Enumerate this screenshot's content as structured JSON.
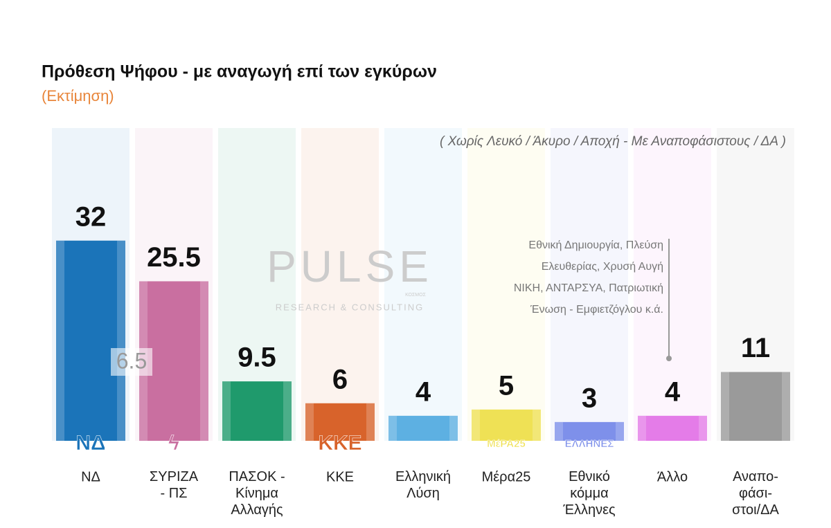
{
  "chart_data": {
    "type": "bar",
    "title": "Πρόθεση Ψήφου - με αναγωγή επί των εγκύρων",
    "subtitle": "(Εκτίμηση)",
    "note": "( Χωρίς Λευκό / Άκυρο / Αποχή  -  Με Αναποφάσιστους / ΔΑ )",
    "categories": [
      "ΝΔ",
      "ΣΥΡΙΖΑ\n- ΠΣ",
      "ΠΑΣΟΚ -\nΚίνημα\nΑλλαγής",
      "ΚΚΕ",
      "Ελληνική\nΛύση",
      "Μέρα25",
      "Εθνικό\nκόμμα\nΈλληνες",
      "Άλλο",
      "Αναπο-\nφάσι-\nστοι/ΔΑ"
    ],
    "values": [
      32,
      25.5,
      9.5,
      6,
      4,
      5,
      3,
      4,
      11
    ],
    "colors": [
      "#1b74b9",
      "#c96fa0",
      "#1f9a6c",
      "#d8632b",
      "#5db0e2",
      "#efe155",
      "#7e90ea",
      "#e47ce8",
      "#9a9a9a"
    ],
    "logos": [
      "ΝΔ",
      "ϟ",
      null,
      "ΚΚΕ",
      null,
      "ΜέΡΑ25",
      "ΕΛΛΗΝΕΣ",
      null,
      null
    ],
    "lead_annotation": 6.5,
    "other_parties": [
      "Εθνική Δημιουργία, Πλεύση",
      "Ελευθερίας, Χρυσή Αυγή",
      "ΝΙΚΗ, ΑΝΤΑΡΣΥΑ, Πατριωτική",
      "Ένωση - Εμφιετζόγλου   κ.ά."
    ],
    "watermark": [
      "PULSE",
      "RESEARCH & CONSULTING",
      "ΚΟΣΜΟΣ"
    ],
    "ylim": [
      0,
      50
    ]
  }
}
